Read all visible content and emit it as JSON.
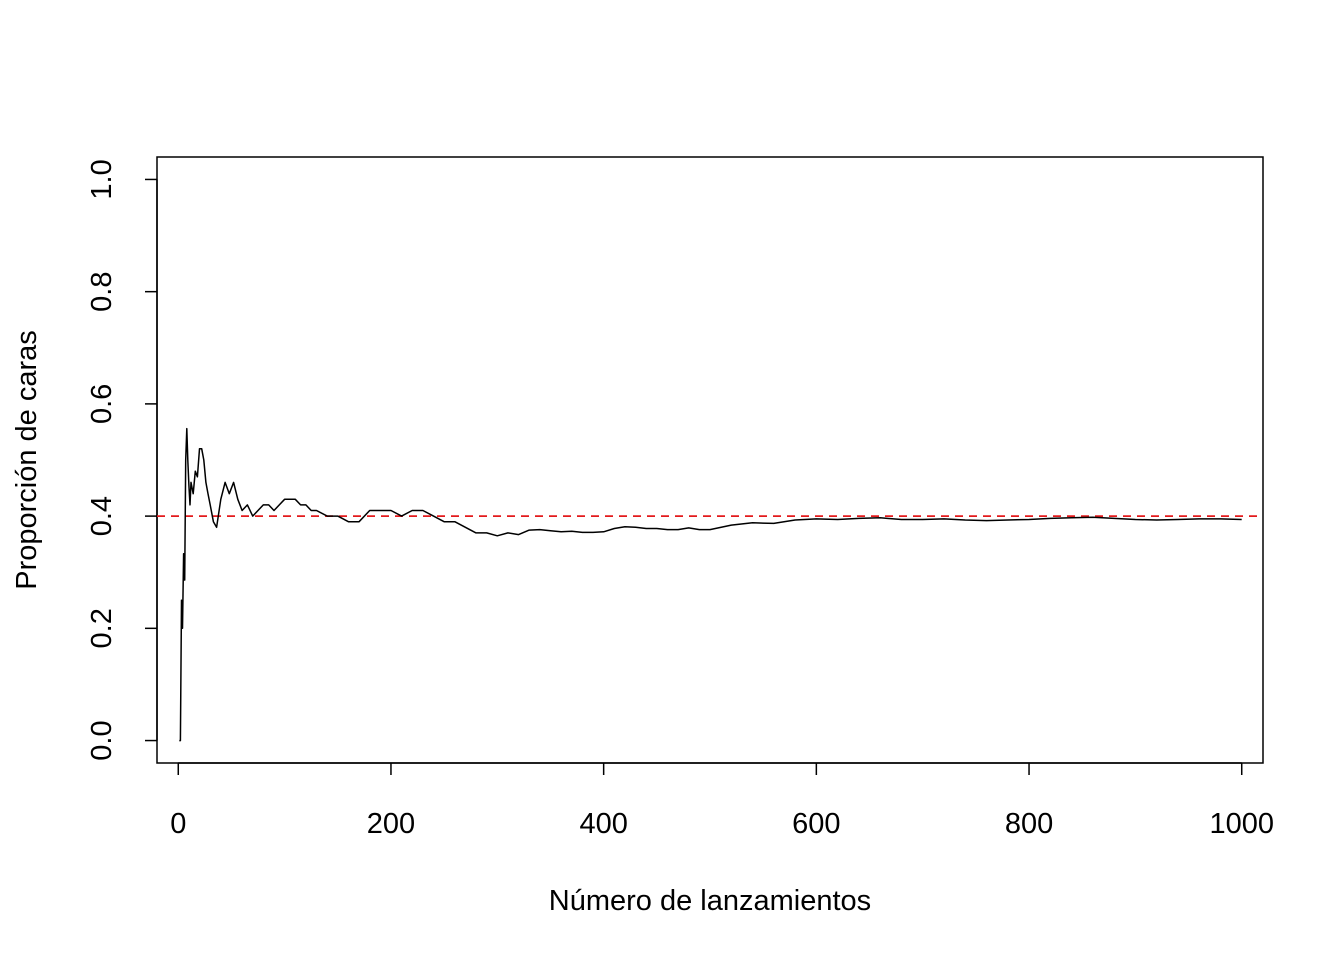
{
  "chart_data": {
    "type": "line",
    "title": "",
    "xlabel": "Número de lanzamientos",
    "ylabel": "Proporción de caras",
    "xlim": [
      -20,
      1020
    ],
    "ylim": [
      -0.04,
      1.04
    ],
    "x_ticks": [
      0,
      200,
      400,
      600,
      800,
      1000
    ],
    "x_tick_labels": [
      "0",
      "200",
      "400",
      "600",
      "800",
      "1000"
    ],
    "y_ticks": [
      0.0,
      0.2,
      0.4,
      0.6,
      0.8,
      1.0
    ],
    "y_tick_labels": [
      "0.0",
      "0.2",
      "0.4",
      "0.6",
      "0.8",
      "1.0"
    ],
    "grid": false,
    "legend": "none",
    "reference_line": {
      "y": 0.4,
      "color": "#e31a1c",
      "style": "dashed"
    },
    "series": [
      {
        "color": "#000000",
        "x": [
          1,
          2,
          3,
          4,
          5,
          6,
          7,
          8,
          9,
          10,
          11,
          12,
          14,
          16,
          18,
          20,
          22,
          24,
          26,
          28,
          30,
          33,
          36,
          40,
          44,
          48,
          52,
          56,
          60,
          65,
          70,
          75,
          80,
          85,
          90,
          95,
          100,
          105,
          110,
          115,
          120,
          125,
          130,
          140,
          150,
          160,
          170,
          180,
          190,
          200,
          210,
          220,
          230,
          240,
          250,
          260,
          270,
          280,
          290,
          300,
          310,
          320,
          330,
          340,
          350,
          360,
          370,
          380,
          390,
          400,
          410,
          420,
          430,
          440,
          450,
          460,
          470,
          480,
          490,
          500,
          520,
          540,
          560,
          580,
          600,
          620,
          640,
          660,
          680,
          700,
          720,
          740,
          760,
          780,
          800,
          820,
          840,
          860,
          880,
          900,
          920,
          940,
          960,
          980,
          1000
        ],
        "y": [
          0.0,
          0.0,
          0.25,
          0.2,
          0.333,
          0.286,
          0.5,
          0.556,
          0.5,
          0.455,
          0.42,
          0.46,
          0.44,
          0.48,
          0.47,
          0.52,
          0.52,
          0.5,
          0.46,
          0.44,
          0.42,
          0.39,
          0.38,
          0.43,
          0.46,
          0.44,
          0.46,
          0.43,
          0.41,
          0.42,
          0.4,
          0.41,
          0.42,
          0.42,
          0.41,
          0.42,
          0.43,
          0.43,
          0.43,
          0.42,
          0.42,
          0.41,
          0.41,
          0.4,
          0.4,
          0.39,
          0.39,
          0.41,
          0.41,
          0.41,
          0.4,
          0.41,
          0.41,
          0.4,
          0.39,
          0.39,
          0.38,
          0.37,
          0.37,
          0.365,
          0.37,
          0.367,
          0.375,
          0.376,
          0.374,
          0.372,
          0.373,
          0.371,
          0.371,
          0.372,
          0.378,
          0.381,
          0.38,
          0.378,
          0.378,
          0.376,
          0.376,
          0.379,
          0.376,
          0.376,
          0.384,
          0.388,
          0.387,
          0.393,
          0.395,
          0.394,
          0.396,
          0.397,
          0.394,
          0.394,
          0.395,
          0.393,
          0.392,
          0.393,
          0.394,
          0.396,
          0.397,
          0.398,
          0.396,
          0.394,
          0.393,
          0.394,
          0.395,
          0.395,
          0.394
        ]
      }
    ]
  }
}
